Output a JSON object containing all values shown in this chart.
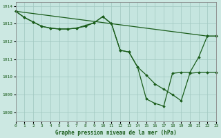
{
  "title": "Graphe pression niveau de la mer (hPa)",
  "background_color": "#cce8e2",
  "plot_bg_color": "#c5e5df",
  "grid_color": "#a0c8c0",
  "line_color": "#1a5c1a",
  "xlim": [
    0,
    23
  ],
  "ylim": [
    1007.5,
    1014.2
  ],
  "yticks": [
    1008,
    1009,
    1010,
    1011,
    1012,
    1013,
    1014
  ],
  "xticks": [
    0,
    1,
    2,
    3,
    4,
    5,
    6,
    7,
    8,
    9,
    10,
    11,
    12,
    13,
    14,
    15,
    16,
    17,
    18,
    19,
    20,
    21,
    22,
    23
  ],
  "line1_x": [
    0,
    1,
    2,
    3,
    4,
    5,
    6,
    7,
    8,
    9,
    10,
    11,
    12,
    13,
    14,
    15,
    16,
    17,
    18,
    19,
    20,
    21,
    22,
    23
  ],
  "line1_y": [
    1013.7,
    1013.35,
    1013.1,
    1012.85,
    1012.75,
    1012.7,
    1012.7,
    1012.75,
    1012.85,
    1013.05,
    1013.4,
    1013.0,
    1011.5,
    1011.4,
    1010.55,
    1010.1,
    1009.6,
    1009.3,
    1009.0,
    1008.65,
    1010.2,
    1010.25,
    1010.25,
    1010.25
  ],
  "line2_x": [
    0,
    1,
    2,
    3,
    4,
    5,
    6,
    7,
    8,
    9,
    10,
    11,
    12,
    13,
    14,
    15,
    16,
    17,
    18,
    19,
    20,
    21,
    22,
    23
  ],
  "line2_y": [
    1013.7,
    1013.35,
    1013.1,
    1012.85,
    1012.75,
    1012.7,
    1012.7,
    1012.75,
    1012.9,
    1013.05,
    1013.4,
    1013.0,
    1011.5,
    1011.4,
    1010.55,
    1008.75,
    1008.5,
    1008.35,
    1010.2,
    1010.25,
    1010.25,
    1011.1,
    1012.3,
    1012.3
  ],
  "line3_x": [
    0,
    22,
    23
  ],
  "line3_y": [
    1013.7,
    1012.3,
    1012.3
  ]
}
